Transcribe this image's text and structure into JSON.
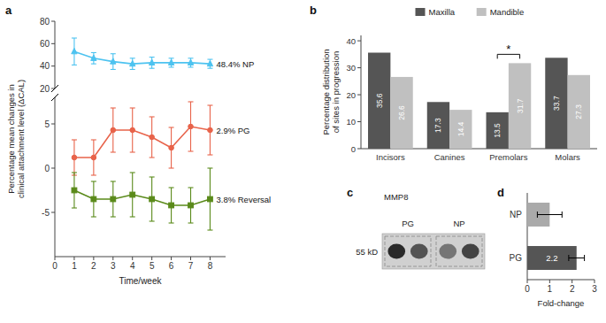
{
  "chart_data": [
    {
      "type": "line",
      "title": "a",
      "ylabel": "Percentage mean changes in\nclinical attachment level (ΔCAL)",
      "x": [
        1,
        2,
        3,
        4,
        5,
        6,
        7,
        8
      ],
      "xlim": [
        0,
        8.8
      ],
      "ylim": [
        20,
        80
      ],
      "yticks": [
        20,
        40,
        60,
        80
      ],
      "tick_labels": "y",
      "series": [
        {
          "name": "48.4% NP",
          "color": "#4dc3f0",
          "marker": "triangle",
          "values": [
            53,
            47,
            44,
            42,
            43,
            43,
            43,
            42
          ],
          "errors": [
            12,
            5,
            7,
            5,
            5,
            4,
            4,
            4
          ]
        }
      ]
    },
    {
      "type": "line",
      "xlabel": "Time/week",
      "x": [
        1,
        2,
        3,
        4,
        5,
        6,
        7,
        8
      ],
      "xlim": [
        0,
        8.8
      ],
      "xticks": [
        0,
        1,
        2,
        3,
        4,
        5,
        6,
        7,
        8
      ],
      "ylim": [
        -10,
        8
      ],
      "yticks": [
        -5,
        0,
        5
      ],
      "series": [
        {
          "name": "2.9% PG",
          "color": "#e8634a",
          "marker": "circle",
          "values": [
            1.2,
            1.2,
            4.3,
            4.3,
            3.5,
            2.3,
            4.7,
            4.3
          ],
          "errors": [
            2.0,
            2.0,
            2.5,
            2.5,
            2.3,
            2.3,
            2.8,
            2.8
          ]
        },
        {
          "name": "3.8% Reversal",
          "color": "#5a8a1a",
          "marker": "square",
          "values": [
            -2.5,
            -3.5,
            -3.5,
            -3.0,
            -3.5,
            -4.2,
            -4.2,
            -3.5
          ],
          "errors": [
            2.0,
            2.0,
            2.0,
            2.5,
            2.5,
            2.0,
            2.0,
            3.5
          ]
        }
      ]
    },
    {
      "type": "bar",
      "title": "b",
      "ylabel": "Percentage distribution\nof sites in progression",
      "categories": [
        "Incisors",
        "Canines",
        "Premolars",
        "Molars"
      ],
      "series": [
        {
          "name": "Maxilla",
          "color": "#555555",
          "values": [
            35.6,
            17.3,
            13.5,
            33.7
          ]
        },
        {
          "name": "Mandible",
          "color": "#c0c0c0",
          "values": [
            26.6,
            14.4,
            31.7,
            27.3
          ]
        }
      ],
      "ylim": [
        0,
        42
      ],
      "yticks": [
        0,
        10,
        20,
        30,
        40
      ],
      "legend": "top",
      "data_labels": true,
      "annotations": [
        {
          "text": "*",
          "category": "Premolars"
        }
      ]
    },
    {
      "type": "blot",
      "title": "c",
      "categories": [
        "PG",
        "NP"
      ],
      "annotations": [
        "MMP8",
        "55 kD"
      ]
    },
    {
      "type": "bar",
      "title": "d",
      "orientation": "horizontal",
      "categories": [
        "NP",
        "PG"
      ],
      "values": [
        1.0,
        2.2
      ],
      "errors": [
        0.55,
        0.35
      ],
      "colors": [
        "#aaaaaa",
        "#555555"
      ],
      "xlim": [
        0,
        3
      ],
      "xticks": [
        0,
        1,
        2,
        3
      ],
      "xlabel": "Fold-change",
      "data_labels": true,
      "value_labels": [
        null,
        "2.2"
      ]
    }
  ]
}
